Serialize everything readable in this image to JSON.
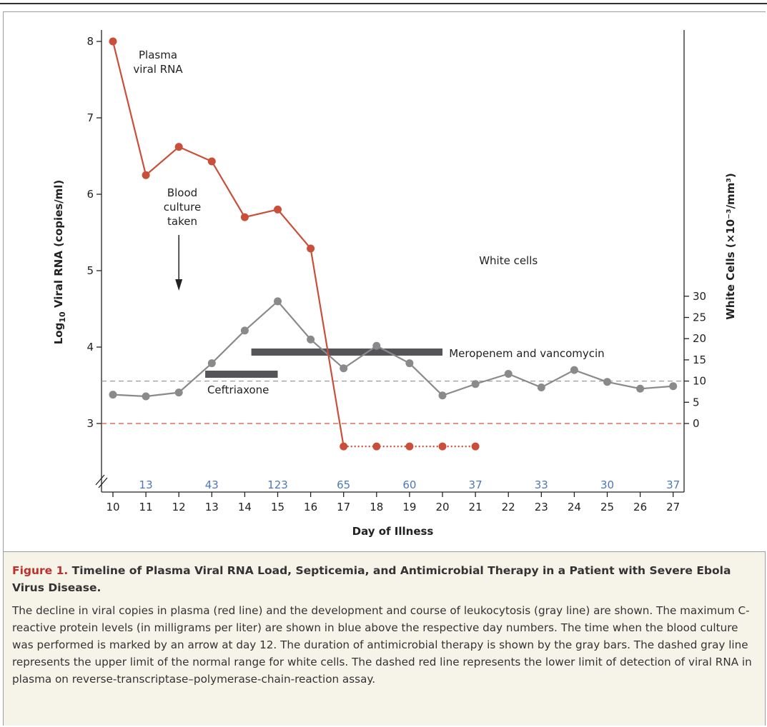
{
  "chart_data": {
    "type": "line",
    "x_label": "Day of Illness",
    "y_left_label": "Log10 Viral RNA (copies/ml)",
    "y_left_label_base": "Log",
    "y_left_label_sub": "10",
    "y_left_label_rest": " Viral RNA (copies/ml)",
    "y_right_label": "White Cells (×10⁻³/mm³)",
    "x_ticks": [
      "10",
      "11",
      "12",
      "13",
      "14",
      "15",
      "16",
      "17",
      "18",
      "19",
      "20",
      "21",
      "22",
      "23",
      "24",
      "25",
      "26",
      "27"
    ],
    "y_left_ticks": [
      "3",
      "4",
      "5",
      "6",
      "7",
      "8"
    ],
    "y_right_ticks": [
      "0",
      "5",
      "10",
      "15",
      "20",
      "25",
      "30"
    ],
    "x_range": [
      10,
      27
    ],
    "y_left_range": [
      3,
      8
    ],
    "y_right_range": [
      0,
      30
    ],
    "viral_rna": {
      "color": "#c94f3a",
      "days": [
        10,
        11,
        12,
        13,
        14,
        15,
        16,
        17
      ],
      "values": [
        8.0,
        6.25,
        6.62,
        6.43,
        5.7,
        5.8,
        5.29,
        2.7
      ],
      "below_detection_days": [
        17,
        18,
        19,
        20,
        21
      ],
      "below_detection_value": 2.7
    },
    "white_cells": {
      "color": "#8a8a8a",
      "days": [
        10,
        11,
        12,
        13,
        14,
        15,
        16,
        17,
        18,
        19,
        20,
        21,
        22,
        23,
        24,
        25,
        26,
        27
      ],
      "values": [
        6.8,
        6.4,
        7.3,
        14.2,
        21.9,
        28.8,
        19.8,
        13.0,
        18.3,
        14.2,
        6.6,
        9.3,
        11.7,
        8.5,
        12.6,
        9.8,
        8.2,
        8.8
      ]
    },
    "wbc_upper_normal": 10,
    "detection_limit_log": 3,
    "crp": {
      "color": "#4d79b3",
      "days": [
        11,
        13,
        15,
        17,
        19,
        21,
        23,
        25,
        27
      ],
      "labels": [
        "13",
        "43",
        "123",
        "65",
        "60",
        "37",
        "33",
        "30",
        "37"
      ]
    },
    "therapy_bar_color": "#555559",
    "therapies": [
      {
        "name": "Ceftriaxone",
        "start": 12.8,
        "end": 15.0
      },
      {
        "name": "Meropenem and vancomycin",
        "start": 14.2,
        "end": 20.0
      }
    ],
    "annotations": {
      "plasma_line1": "Plasma",
      "plasma_line2": "viral RNA",
      "blood_line1": "Blood",
      "blood_line2": "culture",
      "blood_line3": "taken",
      "blood_culture_day": 12,
      "white_cells": "White cells"
    }
  },
  "caption": {
    "label": "Figure 1.",
    "title": "Timeline of Plasma Viral RNA Load, Septicemia, and Antimicrobial Therapy in a Patient with Severe Ebola Virus Disease.",
    "body": "The decline in viral copies in plasma (red line) and the development and course of leukocytosis (gray line) are shown. The maximum C-reactive protein levels (in milligrams per liter) are shown in blue above the respective day numbers. The time when the blood culture was performed is marked by an arrow at day 12. The duration of antimicrobial therapy is shown by the gray bars. The dashed gray line represents the upper limit of the normal range for white cells. The dashed red line represents the lower limit of detection of viral RNA in plasma on reverse-transcriptase–polymerase-chain-reaction assay."
  }
}
